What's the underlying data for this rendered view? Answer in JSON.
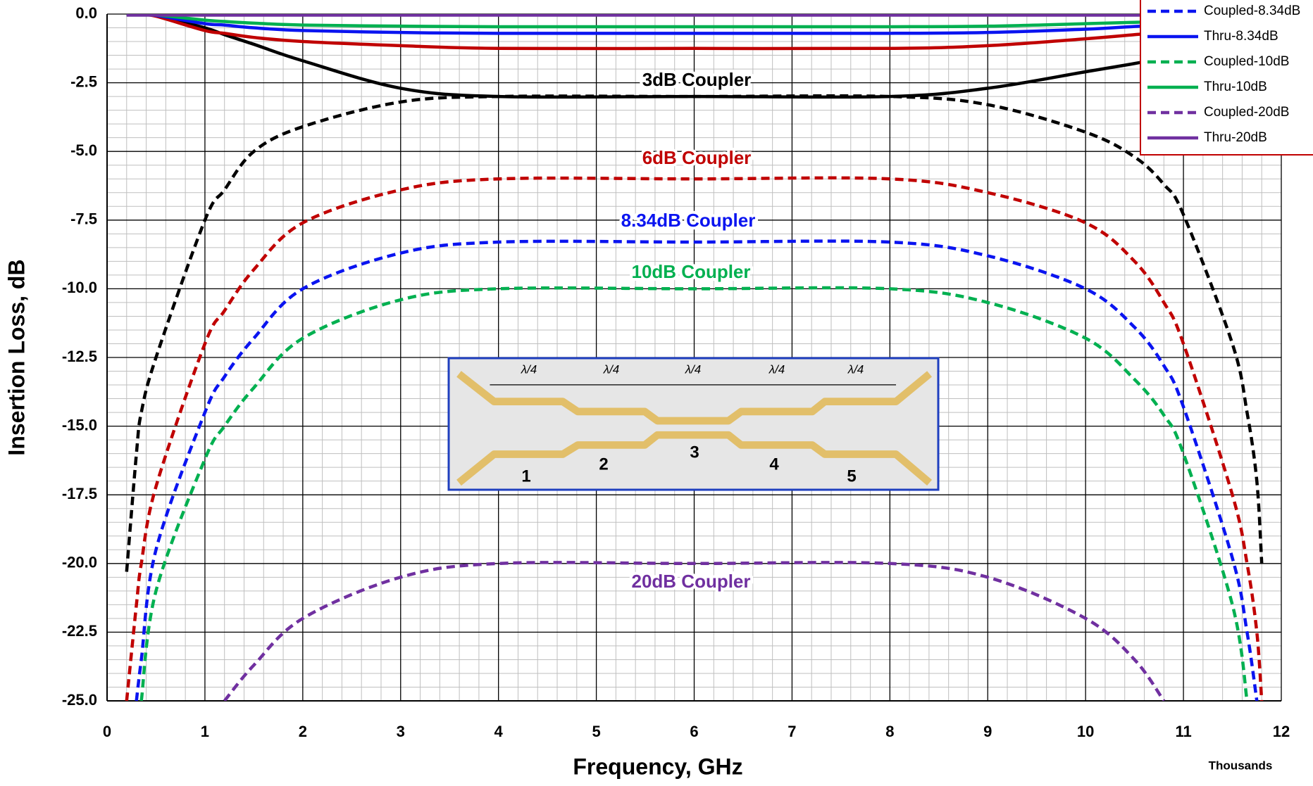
{
  "chart_data": {
    "type": "line",
    "xlabel": "Frequency, GHz",
    "ylabel": "Insertion Loss, dB",
    "x_multiplier": "Thousands",
    "x": [
      0.2,
      0.3,
      0.35,
      0.5,
      1,
      1.2,
      1.5,
      2,
      3,
      4,
      6,
      8,
      9,
      10,
      10.5,
      10.8,
      11,
      11.5,
      11.65,
      11.75,
      11.8
    ],
    "series": [
      {
        "color": "#000000",
        "dashed": true,
        "values": [
          -20.3,
          -16,
          -14.5,
          -12.5,
          -7.5,
          -6.4,
          -5.0,
          -4.1,
          -3.2,
          -3.0,
          -3.0,
          -3.0,
          -3.3,
          -4.3,
          -5.2,
          -6.2,
          -7.3,
          -12,
          -14.5,
          -17,
          -20
        ]
      },
      {
        "color": "#000000",
        "dashed": false,
        "values": [
          0,
          0,
          0,
          -0.05,
          -0.5,
          -0.75,
          -1.1,
          -1.7,
          -2.7,
          -3.0,
          -3.0,
          -3.0,
          -2.7,
          -2.1,
          -1.8,
          -1.6,
          -1.5,
          -1.2,
          -1.1,
          -1.0,
          -1.0
        ]
      },
      {
        "color": "#c00000",
        "dashed": true,
        "values": [
          -25,
          -21.5,
          -20,
          -17.2,
          -12,
          -10.8,
          -9.3,
          -7.6,
          -6.4,
          -6.0,
          -6.0,
          -6.0,
          -6.5,
          -7.6,
          -9.0,
          -10.5,
          -12,
          -17.5,
          -20,
          -22.5,
          -25
        ]
      },
      {
        "color": "#c00000",
        "dashed": false,
        "values": [
          0,
          -0.02,
          -0.03,
          -0.08,
          -0.6,
          -0.7,
          -0.85,
          -1.0,
          -1.15,
          -1.25,
          -1.25,
          -1.25,
          -1.15,
          -0.9,
          -0.75,
          -0.65,
          -0.55,
          -0.4,
          -0.35,
          -0.3,
          -0.3
        ]
      },
      {
        "name": "Coupled-8.34dB",
        "color": "#0a14f0",
        "dashed": true,
        "values": [
          null,
          -25,
          -23.5,
          -19.5,
          -14.5,
          -13.2,
          -11.8,
          -10,
          -8.7,
          -8.3,
          -8.3,
          -8.3,
          -8.8,
          -10,
          -11.4,
          -12.8,
          -14.3,
          -19.8,
          -22.5,
          -25,
          null
        ]
      },
      {
        "name": "Thru-8.34dB",
        "color": "#0a14f0",
        "dashed": false,
        "values": [
          0,
          0,
          -0.02,
          -0.05,
          -0.35,
          -0.4,
          -0.5,
          -0.6,
          -0.67,
          -0.7,
          -0.7,
          -0.7,
          -0.67,
          -0.55,
          -0.45,
          -0.4,
          -0.35,
          -0.3,
          -0.25,
          -0.2,
          -0.2
        ]
      },
      {
        "name": "Coupled-10dB",
        "color": "#00b050",
        "dashed": true,
        "values": [
          null,
          null,
          -25,
          -21,
          -16.2,
          -15,
          -13.6,
          -11.8,
          -10.4,
          -10,
          -10,
          -10,
          -10.5,
          -11.8,
          -13.3,
          -14.6,
          -16,
          -21.5,
          -25,
          null,
          null
        ]
      },
      {
        "name": "Thru-10dB",
        "color": "#00b050",
        "dashed": false,
        "values": [
          0,
          0,
          0,
          -0.03,
          -0.22,
          -0.27,
          -0.33,
          -0.4,
          -0.44,
          -0.46,
          -0.46,
          -0.46,
          -0.44,
          -0.35,
          -0.3,
          -0.27,
          -0.24,
          -0.2,
          -0.18,
          -0.15,
          -0.15
        ]
      },
      {
        "name": "Coupled-20dB",
        "color": "#7030a0",
        "dashed": true,
        "values": [
          null,
          null,
          null,
          null,
          null,
          -25,
          -23.7,
          -22,
          -20.5,
          -20,
          -20,
          -20,
          -20.5,
          -22,
          -23.5,
          -25,
          null,
          null,
          null,
          null,
          null
        ]
      },
      {
        "name": "Thru-20dB",
        "color": "#7030a0",
        "dashed": false,
        "values": [
          -0.04,
          -0.04,
          -0.04,
          -0.04,
          -0.04,
          -0.04,
          -0.04,
          -0.04,
          -0.04,
          -0.04,
          -0.04,
          -0.04,
          -0.04,
          -0.04,
          -0.04,
          -0.04,
          -0.04,
          -0.04,
          -0.04,
          -0.04,
          -0.04
        ]
      }
    ],
    "xlim": [
      0,
      12
    ],
    "xticks": [
      0,
      1,
      2,
      3,
      4,
      5,
      6,
      7,
      8,
      9,
      10,
      11,
      12
    ],
    "ylim": [
      -25,
      0
    ],
    "yticks": [
      {
        "value": -25,
        "label": "-25.0"
      },
      -22.5,
      {
        "value": -20,
        "label": "-20.0"
      },
      -17.5,
      {
        "value": -15,
        "label": "-15.0"
      },
      -12.5,
      {
        "value": -10,
        "label": "-10.0"
      },
      -7.5,
      {
        "value": -5,
        "label": "-5.0"
      },
      -2.5,
      {
        "value": 0,
        "label": "0.0"
      }
    ],
    "grid": true,
    "minor_grid": true,
    "legend": "upper right",
    "annotations": [
      "3dB Coupler",
      "6dB Coupler",
      "8.34dB Coupler",
      "10dB Coupler",
      "20dB Coupler"
    ],
    "inset": {
      "spacing_labels": [
        "λ/4",
        "λ/4",
        "λ/4",
        "λ/4",
        "λ/4"
      ],
      "section_labels": [
        "1",
        "2",
        "3",
        "4",
        "5"
      ]
    }
  }
}
